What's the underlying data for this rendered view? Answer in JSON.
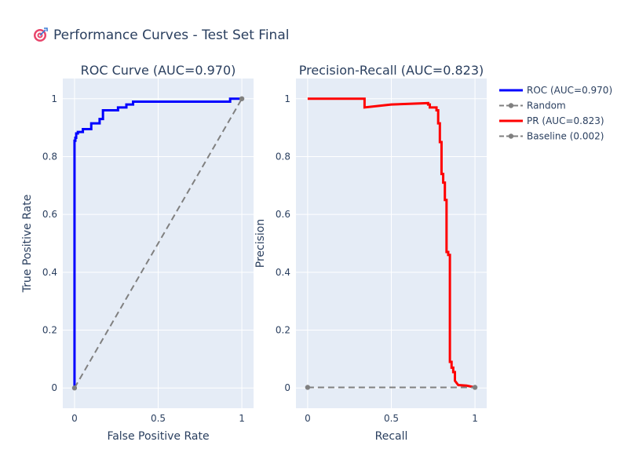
{
  "page": {
    "title_icon": "target-emoji-icon",
    "title": "Performance Curves - Test Set Final"
  },
  "chart_data": [
    {
      "type": "line",
      "title": "ROC Curve (AUC=0.970)",
      "xlabel": "False Positive Rate",
      "ylabel": "True Positive Rate",
      "xlim": [
        -0.07,
        1.07
      ],
      "ylim": [
        -0.07,
        1.07
      ],
      "xticks": [
        {
          "value": 0,
          "label": "0"
        },
        {
          "value": 0.5,
          "label": "0.5"
        },
        {
          "value": 1,
          "label": "1"
        }
      ],
      "yticks": [
        {
          "value": 0,
          "label": "0"
        },
        {
          "value": 0.2,
          "label": "0.2"
        },
        {
          "value": 0.4,
          "label": "0.4"
        },
        {
          "value": 0.6,
          "label": "0.6"
        },
        {
          "value": 0.8,
          "label": "0.8"
        },
        {
          "value": 1,
          "label": "1"
        }
      ],
      "grid": true,
      "series": [
        {
          "name": "ROC (AUC=0.970)",
          "color": "#0000ff",
          "dash": "solid",
          "markers": false,
          "x": [
            0,
            0,
            0.005,
            0.005,
            0.01,
            0.01,
            0.02,
            0.02,
            0.05,
            0.05,
            0.1,
            0.1,
            0.15,
            0.15,
            0.17,
            0.17,
            0.26,
            0.26,
            0.31,
            0.31,
            0.35,
            0.35,
            0.93,
            0.93,
            1.0
          ],
          "y": [
            0,
            0.855,
            0.855,
            0.865,
            0.865,
            0.88,
            0.88,
            0.885,
            0.885,
            0.895,
            0.895,
            0.915,
            0.915,
            0.93,
            0.93,
            0.96,
            0.96,
            0.97,
            0.97,
            0.98,
            0.98,
            0.99,
            0.99,
            1.0,
            1.0
          ]
        },
        {
          "name": "Random",
          "color": "#808080",
          "dash": "dash",
          "markers": true,
          "x": [
            0,
            1
          ],
          "y": [
            0,
            1
          ]
        }
      ]
    },
    {
      "type": "line",
      "title": "Precision-Recall (AUC=0.823)",
      "xlabel": "Recall",
      "ylabel": "Precision",
      "xlim": [
        -0.07,
        1.07
      ],
      "ylim": [
        -0.07,
        1.07
      ],
      "xticks": [
        {
          "value": 0,
          "label": "0"
        },
        {
          "value": 0.5,
          "label": "0.5"
        },
        {
          "value": 1,
          "label": "1"
        }
      ],
      "yticks": [
        {
          "value": 0,
          "label": "0"
        },
        {
          "value": 0.2,
          "label": "0.2"
        },
        {
          "value": 0.4,
          "label": "0.4"
        },
        {
          "value": 0.6,
          "label": "0.6"
        },
        {
          "value": 0.8,
          "label": "0.8"
        },
        {
          "value": 1,
          "label": "1"
        }
      ],
      "grid": true,
      "series": [
        {
          "name": "PR (AUC=0.823)",
          "color": "#ff0000",
          "dash": "solid",
          "markers": false,
          "x": [
            0,
            0.34,
            0.34,
            0.5,
            0.72,
            0.72,
            0.73,
            0.73,
            0.77,
            0.77,
            0.78,
            0.78,
            0.79,
            0.79,
            0.8,
            0.8,
            0.81,
            0.81,
            0.82,
            0.82,
            0.83,
            0.83,
            0.84,
            0.84,
            0.85,
            0.85,
            0.86,
            0.86,
            0.87,
            0.87,
            0.88,
            0.88,
            0.9,
            0.95,
            1.0
          ],
          "y": [
            1.0,
            1.0,
            0.97,
            0.98,
            0.985,
            0.98,
            0.98,
            0.97,
            0.97,
            0.96,
            0.96,
            0.915,
            0.915,
            0.85,
            0.85,
            0.74,
            0.74,
            0.71,
            0.71,
            0.65,
            0.65,
            0.47,
            0.47,
            0.46,
            0.46,
            0.09,
            0.09,
            0.07,
            0.07,
            0.055,
            0.055,
            0.025,
            0.01,
            0.008,
            0.002
          ]
        },
        {
          "name": "Baseline (0.002)",
          "color": "#808080",
          "dash": "dash",
          "markers": true,
          "x": [
            0,
            1
          ],
          "y": [
            0.002,
            0.002
          ]
        }
      ]
    }
  ],
  "legend": {
    "placement": "top-right",
    "items": [
      {
        "label": "ROC (AUC=0.970)",
        "color": "#0000ff",
        "dash": "solid",
        "marker": false
      },
      {
        "label": "Random",
        "color": "#808080",
        "dash": "dash",
        "marker": true
      },
      {
        "label": "PR (AUC=0.823)",
        "color": "#ff0000",
        "dash": "solid",
        "marker": false
      },
      {
        "label": "Baseline (0.002)",
        "color": "#808080",
        "dash": "dash",
        "marker": true
      }
    ]
  },
  "colors": {
    "plot_bg": "#e5ecf6",
    "grid": "#ffffff",
    "text": "#2a3f5f"
  }
}
